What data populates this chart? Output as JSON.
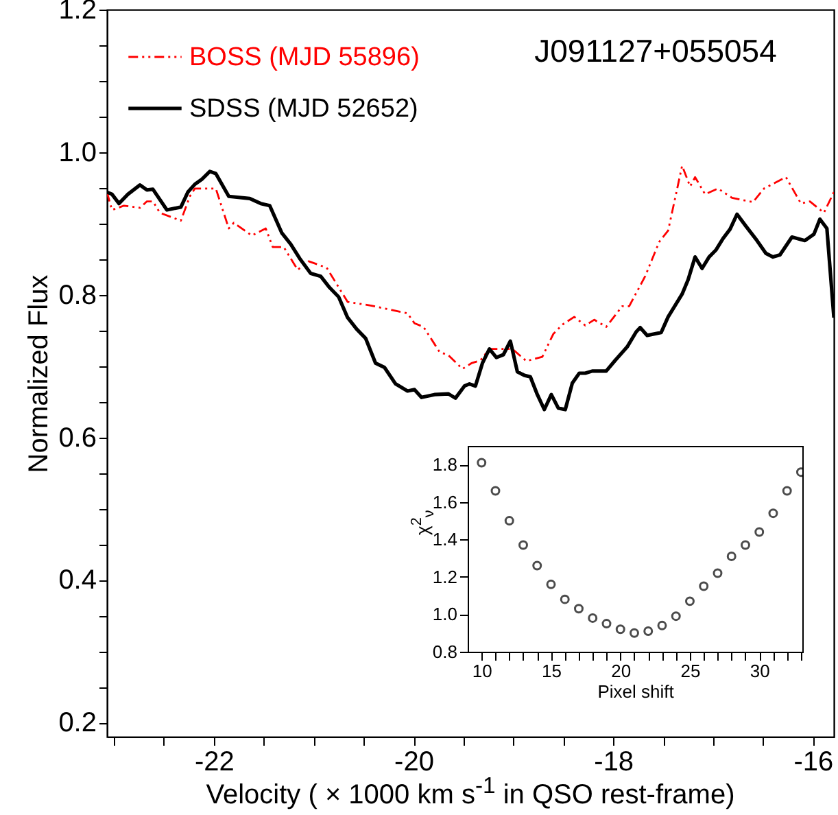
{
  "chart_data": [
    {
      "type": "line",
      "xlabel": "Velocity ( × 1000 km s$^{-1}$ in QSO rest-frame)",
      "ylabel": "Normalized Flux",
      "annotations": [
        "J091127+055054"
      ],
      "legend": "top left",
      "xlim": [
        -23.07,
        -15.79
      ],
      "ylim": [
        0.18,
        1.2
      ],
      "xticks": [
        {
          "value": -23,
          "label": null
        },
        {
          "value": -22.5,
          "label": null
        },
        -22,
        {
          "value": -21.5,
          "label": null
        },
        {
          "value": -21,
          "label": null
        },
        {
          "value": -20.5,
          "label": null
        },
        -20,
        {
          "value": -19.5,
          "label": null
        },
        {
          "value": -19,
          "label": null
        },
        {
          "value": -18.5,
          "label": null
        },
        -18,
        {
          "value": -17.5,
          "label": null
        },
        {
          "value": -17,
          "label": null
        },
        {
          "value": -16.5,
          "label": null
        },
        -16
      ],
      "yticks": [
        0.2,
        {
          "value": 0.25,
          "label": null
        },
        {
          "value": 0.3,
          "label": null
        },
        {
          "value": 0.35,
          "label": null
        },
        0.4,
        {
          "value": 0.45,
          "label": null
        },
        {
          "value": 0.5,
          "label": null
        },
        {
          "value": 0.55,
          "label": null
        },
        0.6,
        {
          "value": 0.65,
          "label": null
        },
        {
          "value": 0.7,
          "label": null
        },
        {
          "value": 0.75,
          "label": null
        },
        0.8,
        {
          "value": 0.85,
          "label": null
        },
        {
          "value": 0.9,
          "label": null
        },
        {
          "value": 0.95,
          "label": null
        },
        {
          "value": 1,
          "label": "1.0"
        },
        {
          "value": 1.05,
          "label": null
        },
        {
          "value": 1.1,
          "label": null
        },
        {
          "value": 1.15,
          "label": null
        },
        1.2
      ],
      "series": [
        {
          "name": "BOSS (MJD 55896)",
          "color": "#ff0000",
          "line_style": "dashed",
          "x": [
            -23.07,
            -23.02,
            -22.9,
            -22.74,
            -22.67,
            -22.61,
            -22.54,
            -22.33,
            -22.24,
            -22.19,
            -21.98,
            -21.85,
            -21.8,
            -21.62,
            -21.48,
            -21.41,
            -21.3,
            -21.16,
            -21.05,
            -20.87,
            -20.66,
            -20.43,
            -20.06,
            -19.99,
            -19.9,
            -19.74,
            -19.65,
            -19.51,
            -19.42,
            -19.33,
            -19.24,
            -19.1,
            -19.01,
            -18.87,
            -18.71,
            -18.6,
            -18.51,
            -18.39,
            -18.28,
            -18.19,
            -18.07,
            -17.91,
            -17.84,
            -17.68,
            -17.54,
            -17.45,
            -17.31,
            -17.23,
            -17.18,
            -17.08,
            -16.95,
            -16.81,
            -16.6,
            -16.49,
            -16.27,
            -16.12,
            -16.03,
            -15.89,
            -15.79
          ],
          "values": [
            0.944,
            0.919,
            0.925,
            0.922,
            0.931,
            0.931,
            0.915,
            0.904,
            0.938,
            0.949,
            0.949,
            0.893,
            0.901,
            0.883,
            0.893,
            0.867,
            0.867,
            0.835,
            0.847,
            0.838,
            0.79,
            0.785,
            0.774,
            0.76,
            0.755,
            0.72,
            0.715,
            0.696,
            0.704,
            0.708,
            0.724,
            0.724,
            0.724,
            0.707,
            0.713,
            0.745,
            0.758,
            0.769,
            0.757,
            0.765,
            0.755,
            0.784,
            0.784,
            0.826,
            0.874,
            0.89,
            0.981,
            0.952,
            0.965,
            0.941,
            0.949,
            0.936,
            0.93,
            0.949,
            0.965,
            0.928,
            0.931,
            0.915,
            0.944
          ]
        },
        {
          "name": "SDSS (MJD 52652)",
          "color": "#000000",
          "line_style": "solid",
          "x": [
            -23.07,
            -23.02,
            -22.95,
            -22.86,
            -22.74,
            -22.67,
            -22.61,
            -22.47,
            -22.33,
            -22.26,
            -22.19,
            -22.12,
            -22.04,
            -21.98,
            -21.85,
            -21.64,
            -21.53,
            -21.44,
            -21.32,
            -21.23,
            -21.14,
            -21.03,
            -20.93,
            -20.84,
            -20.75,
            -20.66,
            -20.57,
            -20.48,
            -20.38,
            -20.29,
            -20.18,
            -20.06,
            -19.99,
            -19.92,
            -19.79,
            -19.65,
            -19.58,
            -19.49,
            -19.44,
            -19.38,
            -19.31,
            -19.24,
            -19.17,
            -19.1,
            -19.03,
            -18.96,
            -18.89,
            -18.83,
            -18.76,
            -18.69,
            -18.62,
            -18.55,
            -18.48,
            -18.41,
            -18.34,
            -18.28,
            -18.21,
            -18.07,
            -17.98,
            -17.86,
            -17.77,
            -17.73,
            -17.66,
            -17.52,
            -17.45,
            -17.31,
            -17.25,
            -17.18,
            -17.11,
            -17.04,
            -16.97,
            -16.9,
            -16.83,
            -16.76,
            -16.67,
            -16.56,
            -16.47,
            -16.4,
            -16.33,
            -16.21,
            -16.08,
            -15.99,
            -15.93,
            -15.86,
            -15.79
          ],
          "values": [
            0.944,
            0.941,
            0.928,
            0.941,
            0.954,
            0.947,
            0.948,
            0.919,
            0.923,
            0.944,
            0.955,
            0.962,
            0.973,
            0.97,
            0.938,
            0.935,
            0.928,
            0.925,
            0.887,
            0.871,
            0.851,
            0.83,
            0.826,
            0.81,
            0.797,
            0.768,
            0.752,
            0.739,
            0.704,
            0.698,
            0.675,
            0.665,
            0.667,
            0.656,
            0.66,
            0.661,
            0.655,
            0.672,
            0.675,
            0.672,
            0.704,
            0.724,
            0.712,
            0.716,
            0.735,
            0.692,
            0.687,
            0.685,
            0.66,
            0.639,
            0.66,
            0.641,
            0.639,
            0.676,
            0.69,
            0.69,
            0.693,
            0.693,
            0.708,
            0.727,
            0.748,
            0.754,
            0.743,
            0.747,
            0.769,
            0.801,
            0.821,
            0.853,
            0.837,
            0.853,
            0.863,
            0.879,
            0.892,
            0.913,
            0.896,
            0.876,
            0.858,
            0.853,
            0.856,
            0.881,
            0.876,
            0.885,
            0.906,
            0.893,
            0.768
          ]
        }
      ]
    },
    {
      "type": "scatter",
      "xlabel": "Pixel shift",
      "ylabel": "χ$^{2}$$_{ν}$",
      "marker": "circle",
      "color": "#000000",
      "xlim": [
        9,
        33.1
      ],
      "ylim": [
        0.8,
        1.9
      ],
      "xticks": [
        10,
        {
          "value": 11,
          "label": null
        },
        {
          "value": 12,
          "label": null
        },
        {
          "value": 13,
          "label": null
        },
        {
          "value": 14,
          "label": null
        },
        15,
        {
          "value": 16,
          "label": null
        },
        {
          "value": 17,
          "label": null
        },
        {
          "value": 18,
          "label": null
        },
        {
          "value": 19,
          "label": null
        },
        20,
        {
          "value": 21,
          "label": null
        },
        {
          "value": 22,
          "label": null
        },
        {
          "value": 23,
          "label": null
        },
        {
          "value": 24,
          "label": null
        },
        25,
        {
          "value": 26,
          "label": null
        },
        {
          "value": 27,
          "label": null
        },
        {
          "value": 28,
          "label": null
        },
        {
          "value": 29,
          "label": null
        },
        30,
        {
          "value": 31,
          "label": null
        },
        {
          "value": 32,
          "label": null
        },
        {
          "value": 33,
          "label": null
        }
      ],
      "yticks": [
        0.8,
        {
          "value": 1,
          "label": "1.0"
        },
        1.2,
        1.4,
        1.6,
        1.8
      ],
      "x": [
        10,
        11,
        12,
        13,
        14,
        15,
        16,
        17,
        18,
        19,
        20,
        21,
        22,
        23,
        24,
        25,
        26,
        27,
        28,
        29,
        30,
        31,
        32,
        33
      ],
      "values": [
        1.81,
        1.66,
        1.5,
        1.37,
        1.26,
        1.16,
        1.08,
        1.03,
        0.98,
        0.95,
        0.92,
        0.9,
        0.91,
        0.94,
        0.99,
        1.07,
        1.15,
        1.22,
        1.31,
        1.37,
        1.44,
        1.54,
        1.66,
        1.76
      ]
    }
  ]
}
